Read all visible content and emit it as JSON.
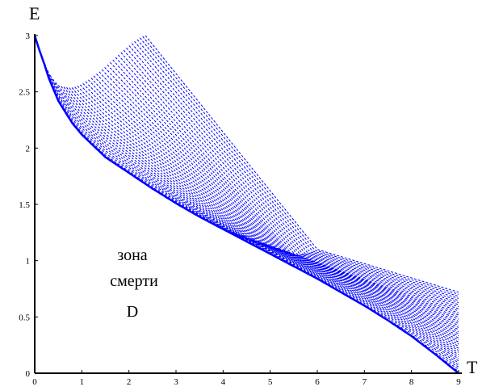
{
  "chart_data": {
    "type": "line",
    "title": "",
    "xlabel": "T",
    "ylabel": "E",
    "xlim": [
      0,
      9
    ],
    "ylim": [
      0,
      3
    ],
    "x_ticks": [
      "0",
      "1",
      "2",
      "3",
      "4",
      "5",
      "6",
      "7",
      "8",
      "9"
    ],
    "y_ticks": [
      "0",
      "0.5",
      "1",
      "1.5",
      "2",
      "2.5",
      "3"
    ],
    "grid": false,
    "legend": "none",
    "color": "#0000ff",
    "annotations": [
      "зона",
      "смерти",
      "D"
    ],
    "boundary_curve": {
      "x": [
        0.0,
        0.1,
        0.2,
        0.3,
        0.5,
        0.8,
        1.0,
        1.5,
        2.0,
        2.5,
        3.0,
        3.5,
        4.0,
        4.5,
        5.0,
        5.5,
        6.0,
        6.5,
        7.0,
        7.5,
        8.0,
        8.5,
        9.0
      ],
      "y": [
        3.0,
        2.87,
        2.75,
        2.62,
        2.42,
        2.22,
        2.12,
        1.92,
        1.78,
        1.64,
        1.51,
        1.39,
        1.28,
        1.17,
        1.06,
        0.95,
        0.84,
        0.72,
        0.6,
        0.47,
        0.33,
        0.17,
        0.0
      ]
    },
    "family": {
      "count": 40,
      "top_start_x_range": [
        0.1,
        2.35
      ],
      "right_end_y_range": [
        0.0,
        0.72
      ],
      "knee_x_range": [
        4.0,
        6.0
      ],
      "knee_y": 1.1
    }
  }
}
